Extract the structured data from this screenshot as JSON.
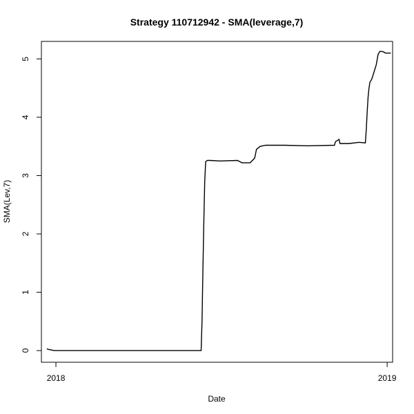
{
  "chart_data": {
    "type": "line",
    "title": "Strategy 110712942 - SMA(leverage,7)",
    "xlabel": "Date",
    "ylabel": "SMA(Lev,7)",
    "x_ticks": [
      "2018",
      "2019"
    ],
    "y_ticks": [
      0,
      1,
      2,
      3,
      4,
      5
    ],
    "xlim": [
      "2017-12-16",
      "2019-01-07"
    ],
    "ylim": [
      -0.2,
      5.3
    ],
    "grid": false,
    "legend": "none",
    "line_color": "#000000",
    "series": [
      {
        "x": [
          "2017-12-22",
          "2017-12-24",
          "2017-12-27",
          "2017-12-30",
          "2018-01-01",
          "2018-06-10",
          "2018-06-11",
          "2018-06-12",
          "2018-06-13",
          "2018-06-14",
          "2018-06-15",
          "2018-06-16",
          "2018-06-17",
          "2018-06-20",
          "2018-07-01",
          "2018-07-20",
          "2018-07-25",
          "2018-08-03",
          "2018-08-08",
          "2018-08-10",
          "2018-08-14",
          "2018-08-20",
          "2018-09-10",
          "2018-10-05",
          "2018-11-04",
          "2018-11-05",
          "2018-11-09",
          "2018-11-10",
          "2018-11-20",
          "2018-12-01",
          "2018-12-08",
          "2018-12-09",
          "2018-12-10",
          "2018-12-11",
          "2018-12-12",
          "2018-12-13",
          "2018-12-15",
          "2018-12-17",
          "2018-12-20",
          "2018-12-22",
          "2018-12-24",
          "2018-12-26",
          "2018-12-28",
          "2018-12-30",
          "2019-01-03",
          "2019-01-05"
        ],
        "y": [
          0.03,
          0.02,
          0.01,
          0.0,
          0.0,
          0.0,
          0.5,
          1.4,
          2.2,
          2.9,
          3.24,
          3.25,
          3.26,
          3.26,
          3.25,
          3.26,
          3.22,
          3.22,
          3.3,
          3.45,
          3.5,
          3.52,
          3.52,
          3.51,
          3.52,
          3.58,
          3.62,
          3.55,
          3.55,
          3.57,
          3.56,
          3.8,
          4.1,
          4.35,
          4.5,
          4.6,
          4.65,
          4.75,
          4.9,
          5.08,
          5.13,
          5.13,
          5.12,
          5.1,
          5.1,
          5.1
        ]
      }
    ]
  }
}
